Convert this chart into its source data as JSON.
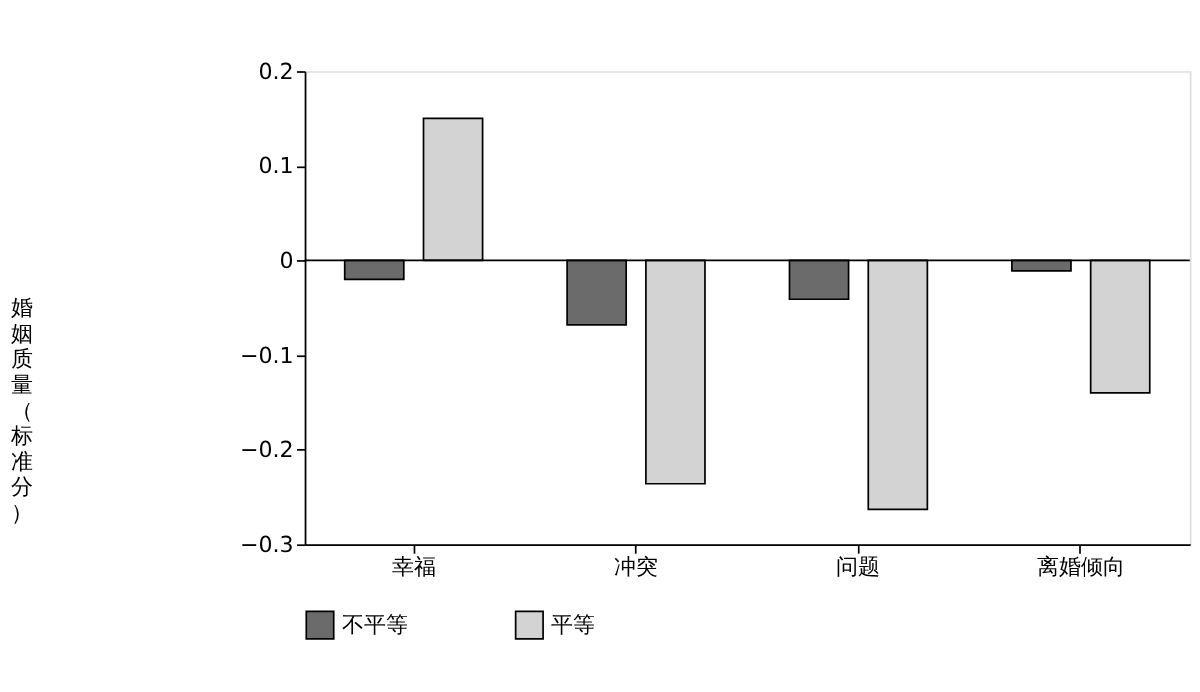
{
  "chart_data": {
    "type": "bar",
    "ylabel": "婚姻质量（标准分）",
    "categories": [
      "幸福",
      "冲突",
      "问题",
      "离婚倾向"
    ],
    "series": [
      {
        "name": "不平等",
        "color": "#6b6b6b",
        "values": [
          -0.02,
          -0.068,
          -0.041,
          -0.011
        ]
      },
      {
        "name": "平等",
        "color": "#d3d3d3",
        "values": [
          0.15,
          -0.236,
          -0.263,
          -0.14
        ]
      }
    ],
    "ylim": [
      -0.3,
      0.2
    ],
    "yticks": [
      {
        "value": -0.3,
        "label": "−0.3"
      },
      {
        "value": -0.2,
        "label": "−0.2"
      },
      {
        "value": -0.1,
        "label": "−0.1"
      },
      0,
      0.1,
      0.2
    ],
    "ref_lines": [
      {
        "axis": "y",
        "value": 0
      }
    ],
    "legend": "bottom",
    "grid": false
  }
}
